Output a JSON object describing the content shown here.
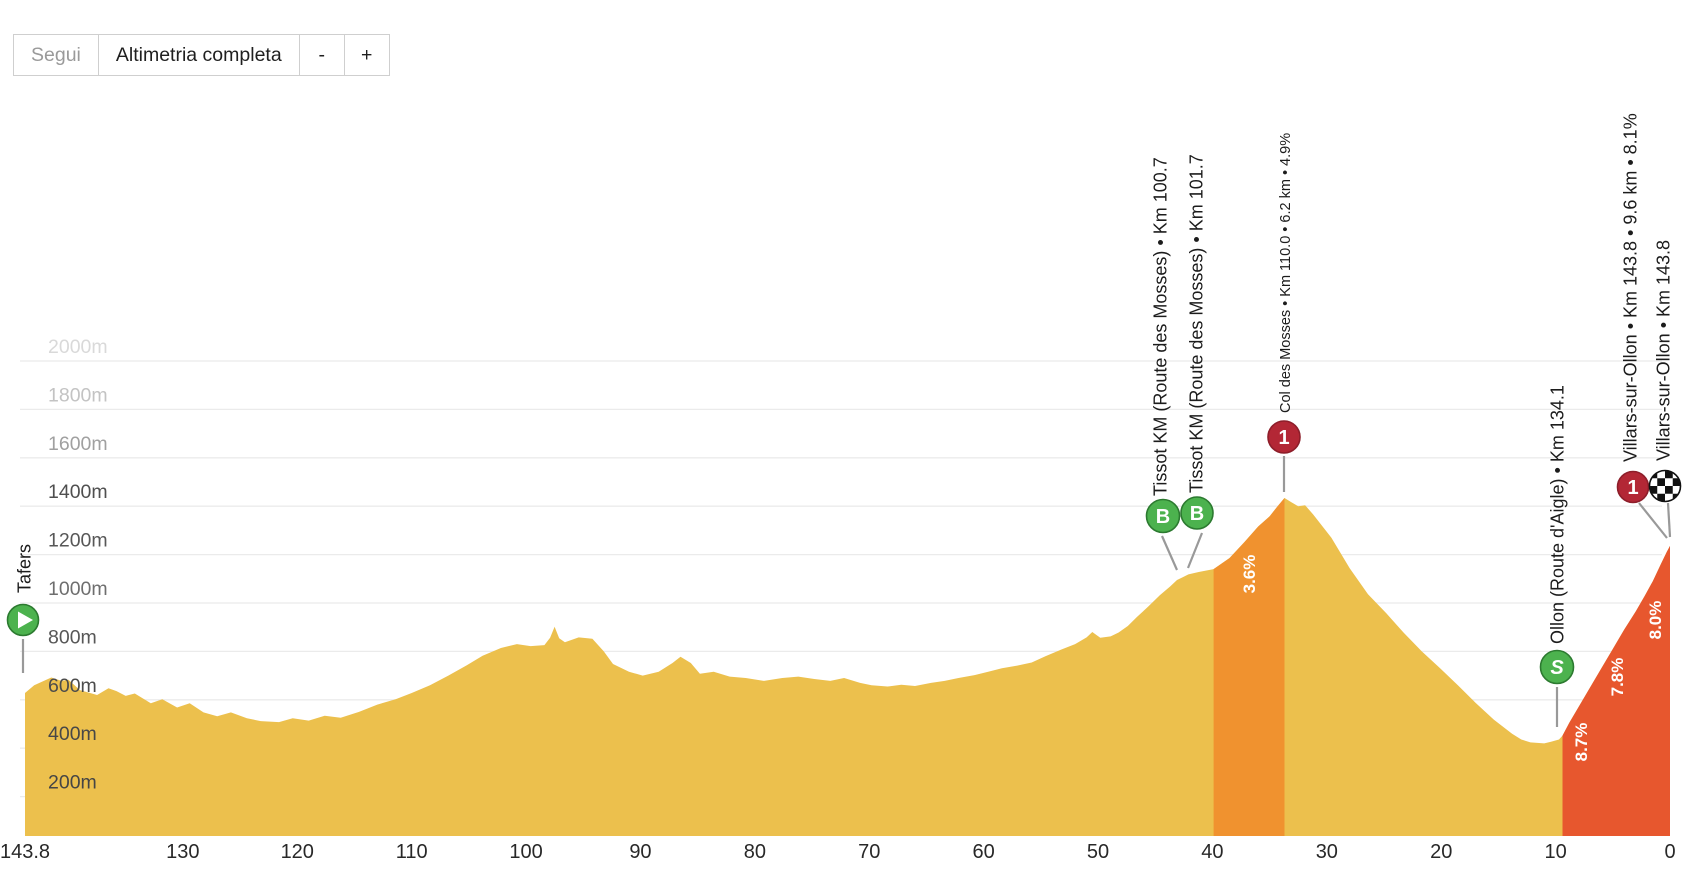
{
  "toolbar": {
    "follow_label": "Segui",
    "profile_select_label": "Altimetria completa",
    "zoom_out_label": "-",
    "zoom_in_label": "+"
  },
  "chart_data": {
    "type": "area",
    "title": "Altimetria completa",
    "x_axis": {
      "unit": "km to finish",
      "direction": "descending",
      "range": [
        143.8,
        0
      ],
      "tick_labels": [
        "143.8",
        "130",
        "120",
        "110",
        "100",
        "90",
        "80",
        "70",
        "60",
        "50",
        "40",
        "30",
        "20",
        "10",
        "0"
      ]
    },
    "y_axis": {
      "unit": "m",
      "tick_labels": [
        "200m",
        "400m",
        "600m",
        "800m",
        "1000m",
        "1200m",
        "1400m",
        "1600m",
        "1800m",
        "2000m"
      ],
      "tick_values_m": [
        200,
        400,
        600,
        800,
        1000,
        1200,
        1400,
        1600,
        1800,
        2000
      ]
    },
    "markers": [
      {
        "id": "start",
        "type": "start",
        "icon": "play-icon",
        "glyph": "",
        "km_to_finish": 143.8,
        "label": "Tafers"
      },
      {
        "id": "bonus1",
        "type": "bonus-sprint",
        "icon": "bonus-sprint-icon",
        "glyph": "B",
        "km_to_finish": 43.1,
        "label": "Tissot KM (Route des Mosses) • Km 100.7"
      },
      {
        "id": "bonus2",
        "type": "bonus-sprint",
        "icon": "bonus-sprint-icon",
        "glyph": "B",
        "km_to_finish": 42.1,
        "label": "Tissot KM (Route des Mosses) • Km 101.7"
      },
      {
        "id": "kom1",
        "type": "cat1-climb",
        "icon": "category-1-icon",
        "glyph": "1",
        "km_to_finish": 33.8,
        "label": "Col des Mosses • Km 110.0 • 6.2 km • 4.9%"
      },
      {
        "id": "sprint",
        "type": "sprint",
        "icon": "sprint-icon",
        "glyph": "S",
        "km_to_finish": 9.7,
        "label": "Ollon (Route d'Aigle) • Km 134.1"
      },
      {
        "id": "kom2",
        "type": "cat1-climb",
        "icon": "category-1-icon",
        "glyph": "1",
        "km_to_finish": 0.4,
        "label": "Villars-sur-Ollon • Km 143.8 • 9.6 km • 8.1%"
      },
      {
        "id": "finish",
        "type": "finish",
        "icon": "checkered-flag-icon",
        "glyph": "",
        "km_to_finish": 0,
        "label": "Villars-sur-Ollon • Km 143.8"
      }
    ],
    "sections": [
      {
        "name": "Col des Mosses climb",
        "from_km_to_finish": 39.9,
        "to_km_to_finish": 33.7,
        "color": "#F0922F"
      },
      {
        "name": "Villars-sur-Ollon climb",
        "from_km_to_finish": 9.4,
        "to_km_to_finish": 0.0,
        "color": "#E7572E"
      }
    ],
    "gradient_labels": [
      {
        "text": "3.6%"
      },
      {
        "text": "8.7%"
      },
      {
        "text": "7.8%"
      },
      {
        "text": "8.0%"
      }
    ],
    "profile_km_elev": [
      [
        143.8,
        628
      ],
      [
        143.0,
        660
      ],
      [
        141.5,
        692
      ],
      [
        140.6,
        678
      ],
      [
        140.0,
        683
      ],
      [
        139.0,
        640
      ],
      [
        137.5,
        620
      ],
      [
        136.5,
        648
      ],
      [
        135.8,
        636
      ],
      [
        135.0,
        616
      ],
      [
        134.2,
        626
      ],
      [
        132.8,
        586
      ],
      [
        131.8,
        602
      ],
      [
        130.5,
        568
      ],
      [
        129.4,
        586
      ],
      [
        128.2,
        548
      ],
      [
        127.0,
        532
      ],
      [
        125.8,
        548
      ],
      [
        124.4,
        524
      ],
      [
        123.2,
        512
      ],
      [
        121.6,
        508
      ],
      [
        120.4,
        524
      ],
      [
        119.0,
        514
      ],
      [
        117.6,
        534
      ],
      [
        116.2,
        526
      ],
      [
        114.6,
        550
      ],
      [
        113.0,
        580
      ],
      [
        111.4,
        602
      ],
      [
        110.0,
        628
      ],
      [
        108.4,
        660
      ],
      [
        106.8,
        700
      ],
      [
        105.2,
        742
      ],
      [
        103.8,
        782
      ],
      [
        102.2,
        814
      ],
      [
        100.8,
        830
      ],
      [
        99.6,
        822
      ],
      [
        98.4,
        826
      ],
      [
        97.9,
        856
      ],
      [
        97.5,
        902
      ],
      [
        97.1,
        854
      ],
      [
        96.6,
        838
      ],
      [
        95.4,
        858
      ],
      [
        94.2,
        852
      ],
      [
        93.2,
        800
      ],
      [
        92.4,
        748
      ],
      [
        91.0,
        716
      ],
      [
        89.8,
        700
      ],
      [
        88.4,
        716
      ],
      [
        87.2,
        752
      ],
      [
        86.5,
        778
      ],
      [
        85.6,
        752
      ],
      [
        84.8,
        708
      ],
      [
        83.6,
        716
      ],
      [
        82.2,
        696
      ],
      [
        80.8,
        690
      ],
      [
        79.2,
        678
      ],
      [
        77.6,
        690
      ],
      [
        76.2,
        696
      ],
      [
        74.8,
        686
      ],
      [
        73.4,
        678
      ],
      [
        72.2,
        690
      ],
      [
        70.8,
        670
      ],
      [
        69.8,
        660
      ],
      [
        68.4,
        655
      ],
      [
        67.2,
        662
      ],
      [
        66.0,
        657
      ],
      [
        64.6,
        670
      ],
      [
        63.4,
        678
      ],
      [
        62.2,
        690
      ],
      [
        60.8,
        702
      ],
      [
        59.6,
        716
      ],
      [
        58.4,
        730
      ],
      [
        57.2,
        740
      ],
      [
        55.8,
        754
      ],
      [
        54.6,
        780
      ],
      [
        53.2,
        808
      ],
      [
        52.0,
        830
      ],
      [
        51.0,
        858
      ],
      [
        50.5,
        880
      ],
      [
        49.8,
        856
      ],
      [
        48.9,
        862
      ],
      [
        48.2,
        878
      ],
      [
        47.4,
        905
      ],
      [
        46.6,
        942
      ],
      [
        45.6,
        986
      ],
      [
        44.6,
        1032
      ],
      [
        43.7,
        1068
      ],
      [
        43.1,
        1095
      ],
      [
        42.6,
        1106
      ],
      [
        42.1,
        1118
      ],
      [
        41.2,
        1128
      ],
      [
        39.9,
        1140
      ],
      [
        38.5,
        1186
      ],
      [
        37.2,
        1252
      ],
      [
        36.0,
        1316
      ],
      [
        35.0,
        1358
      ],
      [
        34.3,
        1400
      ],
      [
        33.7,
        1434
      ],
      [
        33.1,
        1416
      ],
      [
        32.5,
        1400
      ],
      [
        31.9,
        1404
      ],
      [
        31.2,
        1366
      ],
      [
        29.6,
        1270
      ],
      [
        28.0,
        1144
      ],
      [
        26.4,
        1036
      ],
      [
        24.8,
        958
      ],
      [
        23.3,
        878
      ],
      [
        21.7,
        800
      ],
      [
        20.1,
        730
      ],
      [
        18.5,
        658
      ],
      [
        17.0,
        588
      ],
      [
        15.4,
        518
      ],
      [
        13.8,
        460
      ],
      [
        13.0,
        436
      ],
      [
        12.2,
        424
      ],
      [
        11.0,
        420
      ],
      [
        10.4,
        427
      ],
      [
        9.7,
        436
      ],
      [
        9.4,
        452
      ],
      [
        8.8,
        505
      ],
      [
        8.0,
        570
      ],
      [
        7.0,
        650
      ],
      [
        6.0,
        730
      ],
      [
        5.0,
        810
      ],
      [
        4.0,
        890
      ],
      [
        3.0,
        965
      ],
      [
        2.2,
        1030
      ],
      [
        1.5,
        1090
      ],
      [
        0.8,
        1160
      ],
      [
        0.3,
        1210
      ],
      [
        0.0,
        1236
      ]
    ],
    "colors": {
      "profile_base": "#ECC04D",
      "moderate_climb_section": "#F0922F",
      "steep_climb_section": "#E7572E",
      "gridline": "#ebebeb",
      "marker_green": "#4CB24E",
      "marker_green_stroke": "#2c7a30",
      "marker_red": "#B32735",
      "marker_red_stroke": "#8d1e2a",
      "connector_line": "#999999",
      "axis_text": "#282828",
      "gradient_text": "#ffffff"
    }
  }
}
